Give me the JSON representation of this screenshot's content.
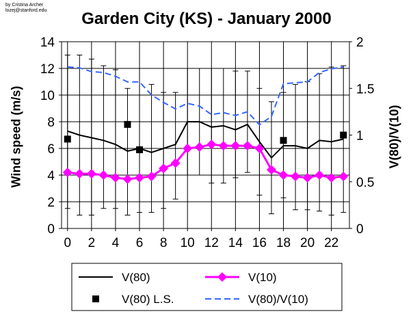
{
  "credit": [
    "by Cristina Archer",
    "lozej@stanford.edu"
  ],
  "chart_data": {
    "type": "line",
    "title": "Garden City (KS) - January 2000",
    "xlabel": "",
    "ylabel": "Wind speed (m/s)",
    "ylabel2": "V(80)/V(10)",
    "x": [
      0,
      1,
      2,
      3,
      4,
      5,
      6,
      7,
      8,
      9,
      10,
      11,
      12,
      13,
      14,
      15,
      16,
      17,
      18,
      19,
      20,
      21,
      22,
      23
    ],
    "xticks": [
      "0",
      "2",
      "4",
      "6",
      "8",
      "10",
      "12",
      "14",
      "16",
      "18",
      "20",
      "22"
    ],
    "xlim": [
      -0.5,
      23.5
    ],
    "ylim": [
      0,
      14
    ],
    "yticks": [
      "0",
      "2",
      "4",
      "6",
      "8",
      "10",
      "12",
      "14"
    ],
    "ylim2": [
      0,
      2
    ],
    "yticks2": [
      "0",
      "0.5",
      "1",
      "1.5",
      "2"
    ],
    "grid": true,
    "legend_position": "bottom",
    "series": [
      {
        "name": "V(80)",
        "axis": "left",
        "style": "solid",
        "color": "#000000",
        "values": [
          7.3,
          7.0,
          6.8,
          6.6,
          6.3,
          5.8,
          6.0,
          5.7,
          6.0,
          6.3,
          8.0,
          8.0,
          7.6,
          7.7,
          7.4,
          7.8,
          6.5,
          5.3,
          6.2,
          6.2,
          6.0,
          6.6,
          6.5,
          6.7
        ],
        "error_low": [
          1.5,
          1.0,
          1.0,
          1.5,
          1.5,
          1.0,
          1.2,
          1.2,
          1.5,
          2.2,
          4.0,
          4.0,
          3.4,
          3.4,
          3.8,
          4.2,
          2.5,
          1.1,
          2.3,
          1.4,
          1.4,
          1.3,
          1.0,
          1.2
        ],
        "error_high": [
          13.0,
          13.0,
          12.7,
          12.2,
          11.9,
          10.5,
          12.0,
          10.8,
          10.2,
          10.2,
          12.0,
          12.0,
          12.0,
          12.0,
          11.8,
          11.8,
          10.5,
          9.5,
          10.2,
          10.8,
          11.0,
          11.6,
          12.1,
          12.2
        ]
      },
      {
        "name": "V(10)",
        "axis": "left",
        "style": "diamond",
        "color": "#ff00ff",
        "values": [
          4.2,
          4.1,
          4.1,
          4.0,
          3.8,
          3.7,
          3.8,
          3.9,
          4.5,
          4.9,
          6.0,
          6.1,
          6.3,
          6.2,
          6.2,
          6.2,
          6.0,
          4.4,
          4.0,
          3.9,
          3.8,
          4.0,
          3.8,
          3.9
        ]
      },
      {
        "name": "V(80) L.S.",
        "axis": "left",
        "style": "square",
        "color": "#000000",
        "x": [
          0,
          5,
          6,
          18,
          23
        ],
        "values": [
          6.7,
          7.8,
          5.9,
          6.6,
          7.0
        ]
      },
      {
        "name": "V(80)/V(10)",
        "axis": "right",
        "style": "dashed",
        "color": "#3366ff",
        "values": [
          1.73,
          1.72,
          1.68,
          1.67,
          1.63,
          1.57,
          1.57,
          1.43,
          1.35,
          1.28,
          1.34,
          1.31,
          1.22,
          1.24,
          1.21,
          1.25,
          1.11,
          1.2,
          1.55,
          1.56,
          1.57,
          1.67,
          1.71,
          1.73
        ]
      }
    ]
  }
}
